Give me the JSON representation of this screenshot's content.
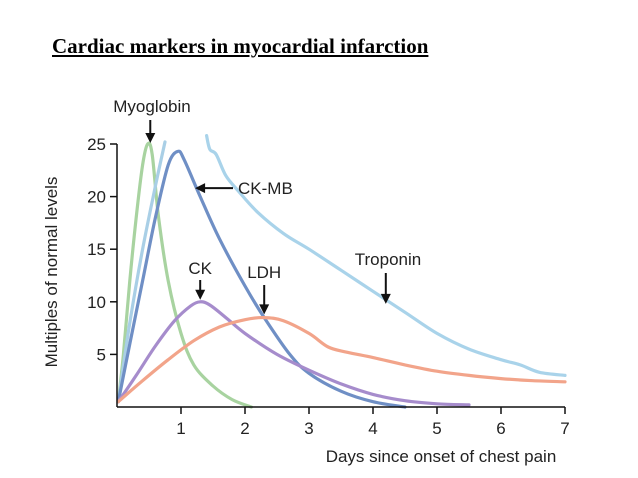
{
  "title": "Cardiac markers in myocardial infarction",
  "chart_data": {
    "type": "line",
    "xlabel": "Days since onset of chest pain",
    "ylabel": "Multiples of normal levels",
    "xlim": [
      0,
      7
    ],
    "ylim": [
      0,
      25
    ],
    "xticks": [
      "1",
      "2",
      "3",
      "4",
      "5",
      "6",
      "7"
    ],
    "yticks": [
      "5",
      "10",
      "15",
      "20",
      "25"
    ],
    "grid": false,
    "series": [
      {
        "name": "Myoglobin",
        "color": "#a8d3a0",
        "clip_top": false,
        "points": [
          [
            0.02,
            0.5
          ],
          [
            0.1,
            5
          ],
          [
            0.2,
            12
          ],
          [
            0.3,
            18
          ],
          [
            0.4,
            23
          ],
          [
            0.48,
            25
          ],
          [
            0.55,
            24
          ],
          [
            0.65,
            18
          ],
          [
            0.8,
            12
          ],
          [
            1.0,
            7
          ],
          [
            1.2,
            4
          ],
          [
            1.5,
            2
          ],
          [
            1.8,
            0.7
          ],
          [
            2.1,
            0
          ]
        ]
      },
      {
        "name": "",
        "color": "#a9cfe6",
        "clip_top": true,
        "points": [
          [
            0.02,
            0.5
          ],
          [
            0.2,
            8
          ],
          [
            0.4,
            15
          ],
          [
            0.6,
            21
          ],
          [
            0.75,
            25.2
          ]
        ]
      },
      {
        "name": "CK-MB",
        "color": "#6f8fc5",
        "clip_top": false,
        "points": [
          [
            0.02,
            0.5
          ],
          [
            0.2,
            6
          ],
          [
            0.4,
            12
          ],
          [
            0.6,
            18
          ],
          [
            0.8,
            23
          ],
          [
            0.95,
            24.3
          ],
          [
            1.05,
            23.5
          ],
          [
            1.3,
            20
          ],
          [
            1.6,
            16
          ],
          [
            2.0,
            11.5
          ],
          [
            2.3,
            8.5
          ],
          [
            2.7,
            5
          ],
          [
            3.0,
            3.2
          ],
          [
            3.5,
            1.5
          ],
          [
            4.0,
            0.5
          ],
          [
            4.5,
            0
          ]
        ]
      },
      {
        "name": "Troponin",
        "color": "#a9d3ea",
        "clip_top": true,
        "points": [
          [
            1.4,
            25.8
          ],
          [
            1.45,
            24.5
          ],
          [
            1.55,
            24
          ],
          [
            1.7,
            22
          ],
          [
            1.9,
            20.5
          ],
          [
            2.2,
            18.5
          ],
          [
            2.6,
            16.5
          ],
          [
            3.0,
            15
          ],
          [
            3.5,
            13
          ],
          [
            4.0,
            11
          ],
          [
            4.5,
            9
          ],
          [
            5.0,
            7
          ],
          [
            5.5,
            5.5
          ],
          [
            6.0,
            4.5
          ],
          [
            6.3,
            4
          ],
          [
            6.6,
            3.3
          ],
          [
            7.0,
            3
          ]
        ]
      },
      {
        "name": "CK",
        "color": "#a68ccc",
        "clip_top": false,
        "points": [
          [
            0.02,
            0.5
          ],
          [
            0.3,
            3
          ],
          [
            0.6,
            5.8
          ],
          [
            0.9,
            8.2
          ],
          [
            1.15,
            9.6
          ],
          [
            1.3,
            10
          ],
          [
            1.45,
            9.7
          ],
          [
            1.7,
            8.5
          ],
          [
            2.0,
            7
          ],
          [
            2.5,
            5
          ],
          [
            3.0,
            3.5
          ],
          [
            3.5,
            2.2
          ],
          [
            4.0,
            1.2
          ],
          [
            4.5,
            0.6
          ],
          [
            5.0,
            0.3
          ],
          [
            5.5,
            0.2
          ]
        ]
      },
      {
        "name": "LDH",
        "color": "#f2a48a",
        "clip_top": false,
        "points": [
          [
            0.02,
            0.5
          ],
          [
            0.4,
            2.5
          ],
          [
            0.8,
            4.5
          ],
          [
            1.2,
            6.3
          ],
          [
            1.6,
            7.6
          ],
          [
            2.0,
            8.3
          ],
          [
            2.3,
            8.5
          ],
          [
            2.6,
            8.2
          ],
          [
            3.0,
            7
          ],
          [
            3.3,
            5.7
          ],
          [
            3.6,
            5.2
          ],
          [
            4.0,
            4.7
          ],
          [
            4.5,
            4
          ],
          [
            5.0,
            3.4
          ],
          [
            5.5,
            3
          ],
          [
            6.0,
            2.7
          ],
          [
            6.5,
            2.5
          ],
          [
            7.0,
            2.4
          ]
        ]
      }
    ],
    "annotations": [
      {
        "text": "Myoglobin",
        "arrow": "down"
      },
      {
        "text": "CK-MB",
        "arrow": "left"
      },
      {
        "text": "CK",
        "arrow": "down"
      },
      {
        "text": "LDH",
        "arrow": "down"
      },
      {
        "text": "Troponin",
        "arrow": "down"
      }
    ]
  }
}
